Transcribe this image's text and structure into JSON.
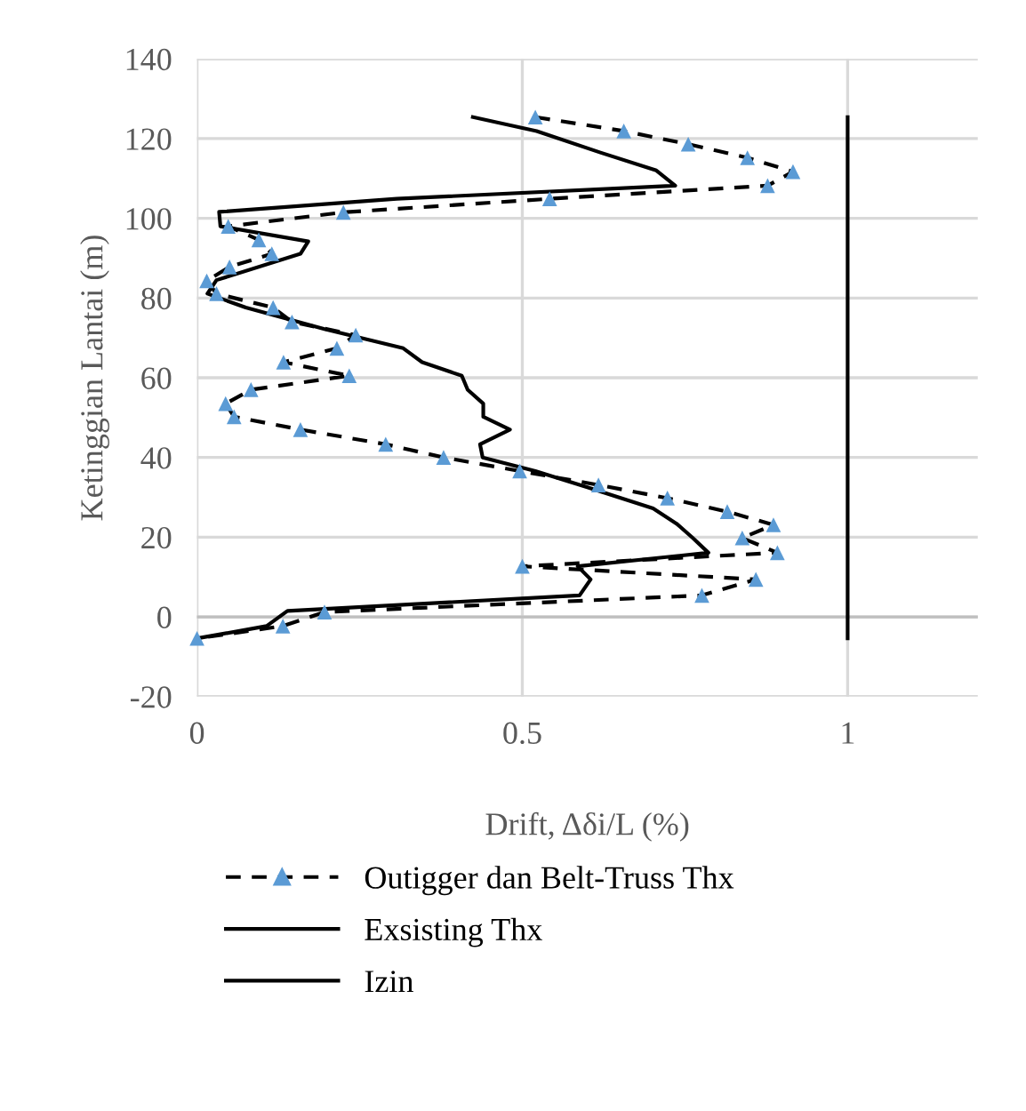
{
  "chart_data": {
    "type": "line",
    "xlabel": "Drift, Δδi/L (%)",
    "ylabel": "Ketinggian Lantai (m)",
    "xlim": [
      0,
      1.2
    ],
    "ylim": [
      -20,
      140
    ],
    "xticks": [
      0,
      0.5,
      1
    ],
    "yticks": [
      -20,
      0,
      20,
      40,
      60,
      80,
      100,
      120,
      140
    ],
    "grid": true,
    "legend": "bottom",
    "series": [
      {
        "name": "Outigger dan Belt-Truss Thx",
        "color": "#000000",
        "colors": [
          "#5b9bd5",
          "#5b9bd5",
          "#5b9bd5",
          "#5b9bd5",
          "#5b9bd5",
          "#5b9bd5",
          "#5b9bd5",
          "#5b9bd5",
          "#5b9bd5",
          "#5b9bd5",
          "#5b9bd5",
          "#5b9bd5",
          "#5b9bd5",
          "#5b9bd5",
          "#5b9bd5",
          "#5b9bd5",
          "#5b9bd5",
          "#5b9bd5",
          "#5b9bd5",
          "#5b9bd5",
          "#5b9bd5",
          "#5b9bd5",
          "#5b9bd5",
          "#5b9bd5",
          "#5b9bd5",
          "#5b9bd5",
          "#5b9bd5",
          "#5b9bd5",
          "#5b9bd5",
          "#5b9bd5",
          "#5b9bd5",
          "#5b9bd5",
          "#5b9bd5",
          "#5b9bd5",
          "#5b9bd5",
          "#5b9bd5",
          "#5b9bd5",
          "#5b9bd5",
          "#5b9bd5"
        ],
        "marker": "triangle",
        "line_style": "dashed",
        "x": [
          0.52,
          0.656,
          0.755,
          0.846,
          0.916,
          0.877,
          0.542,
          0.225,
          0.048,
          0.095,
          0.115,
          0.05,
          0.015,
          0.03,
          0.117,
          0.146,
          0.244,
          0.215,
          0.133,
          0.234,
          0.083,
          0.044,
          0.057,
          0.159,
          0.29,
          0.379,
          0.496,
          0.617,
          0.723,
          0.815,
          0.886,
          0.838,
          0.892,
          0.5,
          0.859,
          0.776,
          0.196,
          0.132,
          0
        ],
        "values": [
          125.4,
          121.9,
          118.6,
          115.2,
          111.7,
          108.2,
          104.9,
          101.5,
          98.0,
          94.6,
          91.1,
          87.8,
          84.3,
          81.1,
          77.6,
          74.0,
          70.7,
          67.4,
          63.9,
          60.5,
          57.0,
          53.5,
          50.2,
          47.0,
          43.3,
          40.0,
          36.6,
          33.1,
          29.8,
          26.4,
          23.1,
          19.8,
          16.1,
          12.7,
          9.4,
          5.4,
          1.2,
          -2.3,
          -5.4
        ]
      },
      {
        "name": "Exsisting Thx",
        "color": "#000000",
        "marker": "none",
        "line_style": "solid",
        "x": [
          0.424,
          0.522,
          0.62,
          0.706,
          0.735,
          0.307,
          0.034,
          0.036,
          0.171,
          0.159,
          0.03,
          0.016,
          0.075,
          0.196,
          0.317,
          0.346,
          0.407,
          0.416,
          0.44,
          0.44,
          0.481,
          0.435,
          0.439,
          0.52,
          0.6,
          0.701,
          0.737,
          0.762,
          0.786,
          0.585,
          0.605,
          0.588,
          0.139,
          0.107,
          0
        ],
        "values": [
          125.4,
          121.9,
          116.5,
          112.0,
          108.2,
          104.9,
          101.6,
          98.0,
          94.2,
          91.1,
          84.5,
          81.1,
          77.6,
          72.2,
          67.4,
          63.9,
          60.5,
          57.0,
          53.5,
          50.2,
          47.0,
          43.3,
          40.0,
          36.6,
          32.5,
          27.2,
          23.4,
          19.8,
          16.1,
          12.7,
          9.4,
          5.4,
          1.5,
          -2.3,
          -5.4
        ]
      },
      {
        "name": "Izin",
        "color": "#000000",
        "marker": "none",
        "line_style": "solid",
        "x": [
          1,
          1
        ],
        "values": [
          -5.4,
          125.4
        ]
      }
    ]
  }
}
